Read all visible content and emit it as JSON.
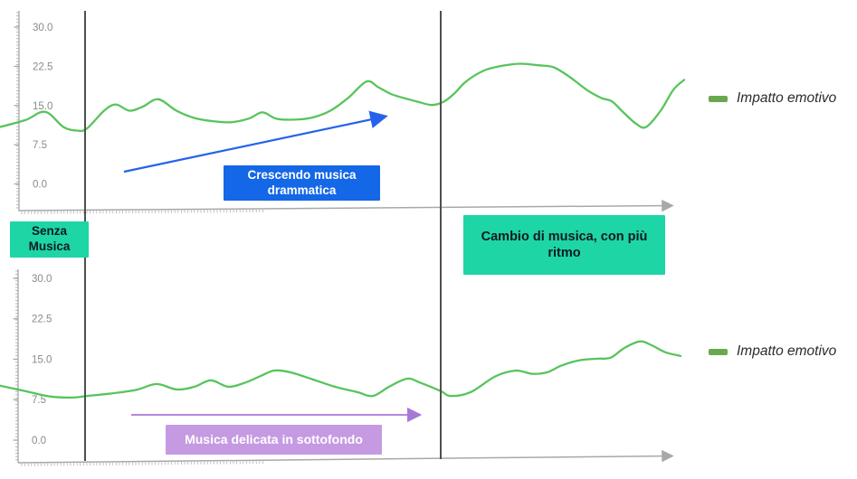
{
  "colors": {
    "teal": "#1ed5a6",
    "blue": "#1467e6",
    "purplebox": "#c59ae2",
    "purplearrow": "#a878d8",
    "bluearrow": "#2563eb",
    "linegreen": "#57c45c",
    "legendgreen": "#6aa84f",
    "divider": "#4f4f4f",
    "axis": "#a8a8a8",
    "ticktext": "#8a8a8a"
  },
  "sections": {
    "senza_musica": {
      "label": "Senza Musica"
    },
    "cambio_musica": {
      "label": "Cambio di musica, con più ritmo"
    }
  },
  "chart_data": [
    {
      "type": "line",
      "title": "",
      "xlabel": "",
      "ylabel": "",
      "ylim": [
        0,
        33
      ],
      "grid": false,
      "yticks": [
        {
          "value": 30.0,
          "label": "30.0"
        },
        {
          "value": 22.5,
          "label": "22.5"
        },
        {
          "value": 15.0,
          "label": "15.0"
        },
        {
          "value": 7.5,
          "label": "7.5"
        },
        {
          "value": 0.0,
          "label": "0.0"
        }
      ],
      "legend": {
        "label": "Impatto emotivo",
        "position": "right"
      },
      "series": [
        {
          "name": "Impatto emotivo",
          "color": "#57c45c",
          "points": [
            [
              0,
              10.9
            ],
            [
              28,
              12.2
            ],
            [
              50,
              13.8
            ],
            [
              70,
              10.9
            ],
            [
              85,
              10.2
            ],
            [
              96,
              10.6
            ],
            [
              115,
              14.0
            ],
            [
              128,
              15.2
            ],
            [
              143,
              14.0
            ],
            [
              158,
              14.8
            ],
            [
              175,
              16.2
            ],
            [
              195,
              14.0
            ],
            [
              215,
              12.6
            ],
            [
              235,
              12.0
            ],
            [
              255,
              11.8
            ],
            [
              275,
              12.5
            ],
            [
              290,
              13.7
            ],
            [
              305,
              12.5
            ],
            [
              325,
              12.3
            ],
            [
              345,
              12.7
            ],
            [
              365,
              14.0
            ],
            [
              385,
              16.5
            ],
            [
              405,
              19.6
            ],
            [
              418,
              18.5
            ],
            [
              432,
              17.2
            ],
            [
              447,
              16.4
            ],
            [
              460,
              15.8
            ],
            [
              477,
              15.1
            ],
            [
              490,
              15.7
            ],
            [
              502,
              17.3
            ],
            [
              515,
              19.6
            ],
            [
              535,
              21.7
            ],
            [
              555,
              22.6
            ],
            [
              575,
              23.0
            ],
            [
              595,
              22.7
            ],
            [
              612,
              22.3
            ],
            [
              630,
              20.4
            ],
            [
              650,
              17.8
            ],
            [
              665,
              16.4
            ],
            [
              676,
              15.8
            ],
            [
              690,
              13.5
            ],
            [
              703,
              11.5
            ],
            [
              714,
              10.9
            ],
            [
              730,
              14.0
            ],
            [
              744,
              18.0
            ],
            [
              756,
              19.9
            ]
          ]
        }
      ],
      "annotation": {
        "label": "Crescendo musica drammatica",
        "box_color": "#1467e6",
        "text_color": "#ffffff",
        "arrow_color": "#2563eb",
        "arrow_direction": "up-right"
      }
    },
    {
      "type": "line",
      "title": "",
      "xlabel": "",
      "ylabel": "",
      "ylim": [
        0,
        33
      ],
      "grid": false,
      "yticks": [
        {
          "value": 30.0,
          "label": "30.0"
        },
        {
          "value": 22.5,
          "label": "22.5"
        },
        {
          "value": 15.0,
          "label": "15.0"
        },
        {
          "value": 7.5,
          "label": "7.5"
        },
        {
          "value": 0.0,
          "label": "0.0"
        }
      ],
      "legend": {
        "label": "Impatto emotivo",
        "position": "right"
      },
      "series": [
        {
          "name": "Impatto emotivo",
          "color": "#57c45c",
          "points": [
            [
              0,
              10.1
            ],
            [
              25,
              9.2
            ],
            [
              55,
              8.1
            ],
            [
              80,
              7.9
            ],
            [
              96,
              8.2
            ],
            [
              120,
              8.6
            ],
            [
              150,
              9.3
            ],
            [
              173,
              10.4
            ],
            [
              195,
              9.4
            ],
            [
              215,
              9.9
            ],
            [
              233,
              11.1
            ],
            [
              252,
              9.9
            ],
            [
              270,
              10.6
            ],
            [
              288,
              11.9
            ],
            [
              303,
              12.9
            ],
            [
              320,
              12.6
            ],
            [
              345,
              11.3
            ],
            [
              370,
              9.9
            ],
            [
              395,
              8.9
            ],
            [
              412,
              8.2
            ],
            [
              430,
              9.9
            ],
            [
              450,
              11.4
            ],
            [
              465,
              10.6
            ],
            [
              487,
              9.1
            ],
            [
              498,
              8.2
            ],
            [
              520,
              8.9
            ],
            [
              547,
              11.8
            ],
            [
              570,
              12.9
            ],
            [
              588,
              12.3
            ],
            [
              605,
              12.6
            ],
            [
              620,
              13.8
            ],
            [
              640,
              14.8
            ],
            [
              660,
              15.1
            ],
            [
              675,
              15.3
            ],
            [
              690,
              17.1
            ],
            [
              707,
              18.3
            ],
            [
              720,
              17.6
            ],
            [
              735,
              16.3
            ],
            [
              752,
              15.6
            ]
          ]
        }
      ],
      "annotation": {
        "label": "Musica delicata in sottofondo",
        "box_color": "#c59ae2",
        "text_color": "#ffffff",
        "arrow_color": "#a878d8",
        "arrow_direction": "right"
      }
    }
  ]
}
